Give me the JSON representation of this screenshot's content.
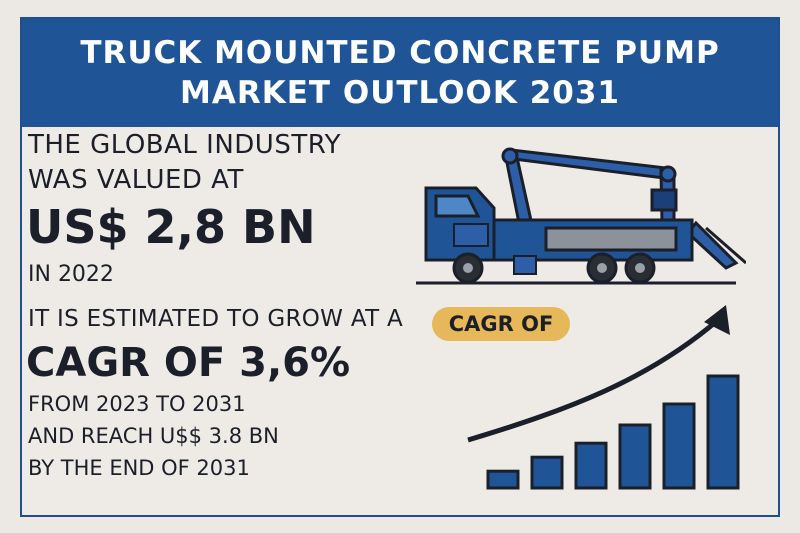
{
  "banner": {
    "line1": "TRUCK MOUNTED CONCRETE PUMP",
    "line2": "MARKET OUTLOOK 2031"
  },
  "valuation": {
    "line1": "THE GLOBAL INDUSTRY",
    "line2": "WAS VALUED AT",
    "amount": "US$ 2,8 BN",
    "year": "IN 2022"
  },
  "growth": {
    "intro": "IT IS ESTIMATED TO GROW AT A",
    "pill_label": "CAGR OF",
    "cagr": "CAGR OF 3,6%",
    "line1": "FROM 2023 TO 2031",
    "line2": "AND REACH U$$ 3.8 BN",
    "line3": "BY THE END OF 2031"
  },
  "icons": {
    "truck": "concrete-pump-truck-icon",
    "chart": "growth-bar-chart-icon"
  },
  "colors": {
    "navy": "#1f5597",
    "accent": "#e6b85a",
    "text": "#1b1f2a",
    "background": "#ece9e4"
  },
  "decorative_bars": [
    0.12,
    0.22,
    0.32,
    0.45,
    0.6,
    0.8
  ]
}
